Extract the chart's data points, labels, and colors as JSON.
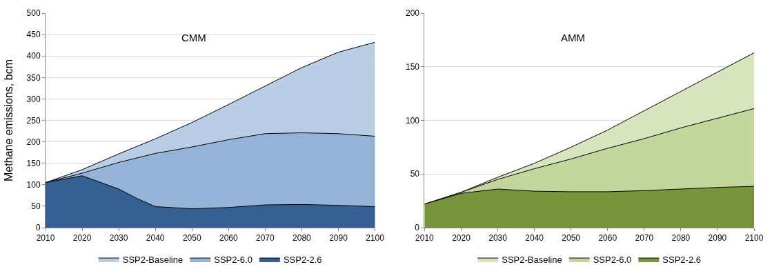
{
  "chart_data": [
    {
      "type": "area",
      "title": "CMM",
      "ylabel": "Methane emissions, bcm",
      "xlim": [
        2010,
        2100
      ],
      "xticks": [
        2010,
        2020,
        2030,
        2040,
        2050,
        2060,
        2070,
        2080,
        2090,
        2100
      ],
      "ylim": [
        0,
        500
      ],
      "yticks": [
        0,
        50,
        100,
        150,
        200,
        250,
        300,
        350,
        400,
        450,
        500
      ],
      "grid": "y",
      "legend": "bottom",
      "series": [
        {
          "name": "SSP2-Baseline",
          "color": "#b9cde5",
          "x": [
            2010,
            2020,
            2030,
            2040,
            2050,
            2060,
            2070,
            2080,
            2090,
            2100
          ],
          "values": [
            105,
            135,
            172,
            207,
            245,
            287,
            330,
            373,
            409,
            432
          ]
        },
        {
          "name": "SSP2-6.0",
          "color": "#95b3d7",
          "x": [
            2010,
            2020,
            2030,
            2040,
            2050,
            2060,
            2070,
            2080,
            2090,
            2100
          ],
          "values": [
            105,
            127,
            152,
            173,
            188,
            205,
            219,
            221,
            219,
            213
          ]
        },
        {
          "name": "SSP2-2.6",
          "color": "#366092",
          "x": [
            2010,
            2020,
            2030,
            2035,
            2040,
            2050,
            2060,
            2070,
            2080,
            2090,
            2100
          ],
          "values": [
            105,
            121,
            90,
            68,
            49,
            44,
            47,
            53,
            54,
            52,
            49
          ]
        }
      ]
    },
    {
      "type": "area",
      "title": "AMM",
      "xlim": [
        2010,
        2100
      ],
      "xticks": [
        2010,
        2020,
        2030,
        2040,
        2050,
        2060,
        2070,
        2080,
        2090,
        2100
      ],
      "ylim": [
        0,
        200
      ],
      "yticks": [
        0,
        50,
        100,
        150,
        200
      ],
      "grid": "y",
      "legend": "bottom",
      "series": [
        {
          "name": "SSP2-Baseline",
          "color": "#d7e4bd",
          "x": [
            2010,
            2020,
            2030,
            2040,
            2050,
            2060,
            2070,
            2080,
            2090,
            2100
          ],
          "values": [
            22,
            33,
            47,
            60,
            75,
            91,
            109,
            127,
            145,
            163
          ]
        },
        {
          "name": "SSP2-6.0",
          "color": "#c3d69b",
          "x": [
            2010,
            2020,
            2030,
            2040,
            2050,
            2060,
            2070,
            2080,
            2090,
            2100
          ],
          "values": [
            22,
            33,
            45,
            55,
            64,
            74,
            83,
            93,
            102,
            111
          ]
        },
        {
          "name": "SSP2-2.6",
          "color": "#77933c",
          "x": [
            2010,
            2020,
            2030,
            2040,
            2050,
            2060,
            2070,
            2080,
            2090,
            2100
          ],
          "values": [
            22,
            32,
            36,
            34,
            33.5,
            33.5,
            34.5,
            36,
            37.5,
            38.5
          ]
        }
      ]
    }
  ]
}
